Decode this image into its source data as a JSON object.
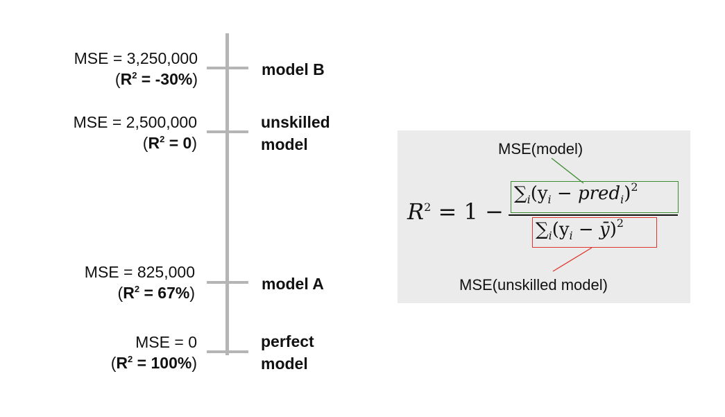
{
  "scale": {
    "levels": [
      {
        "mse_text": "MSE = 3,250,000",
        "r2_value": " = -30%",
        "model_label_lines": [
          "model B"
        ]
      },
      {
        "mse_text": "MSE = 2,500,000",
        "r2_value": " = 0",
        "model_label_lines": [
          "unskilled",
          "model"
        ]
      },
      {
        "mse_text": "MSE = 825,000",
        "r2_value": " = 67%",
        "model_label_lines": [
          "model A"
        ]
      },
      {
        "mse_text": "MSE = 0",
        "r2_value": " = 100%",
        "model_label_lines": [
          "perfect",
          "model"
        ]
      }
    ],
    "axis_color": "#b5b5b5"
  },
  "formula": {
    "numerator_caption": "MSE(model)",
    "denominator_caption": "MSE(unskilled model)",
    "lhs": "R",
    "lhs_exp": "2",
    "equals_one_minus": " = 1 −",
    "numerator": {
      "sum": "∑",
      "sub": "i",
      "body_open": "(y",
      "body_sub": "i",
      "minus": " − ",
      "pred": "pred",
      "pred_sub": "i",
      "close": ")",
      "exp": "2"
    },
    "denominator": {
      "sum": "∑",
      "sub": "i",
      "body_open": "(y",
      "body_sub": "i",
      "minus": " − ",
      "ybar": "ȳ",
      "close": ")",
      "exp": "2"
    },
    "colors": {
      "numerator_box": "#3a8a2e",
      "denominator_box": "#e0352b",
      "panel_bg": "#ebebeb"
    }
  }
}
